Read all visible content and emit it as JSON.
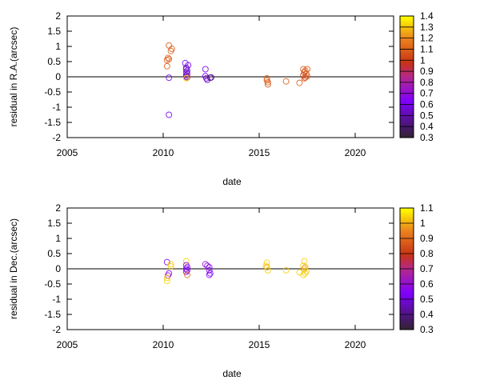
{
  "chart_data": [
    {
      "type": "scatter",
      "xlabel": "date",
      "ylabel": "residual in R.A.(arcsec)",
      "xlim": [
        2005,
        2022
      ],
      "ylim": [
        -2,
        2
      ],
      "xticks": [
        2005,
        2010,
        2015,
        2020
      ],
      "yticks": [
        2,
        1.5,
        1,
        0.5,
        0,
        -0.5,
        -1,
        -1.5,
        -2
      ],
      "ytick_labels": [
        "2",
        "1.5",
        "1",
        "0.5",
        "0",
        "-0.5",
        "-1",
        "-1.5",
        "-2"
      ],
      "zero_line": true,
      "colorbar": {
        "range": [
          0.3,
          1.4
        ],
        "ticks": [
          "1.4",
          "1.3",
          "1.2",
          "1.1",
          "1",
          "0.9",
          "0.8",
          "0.7",
          "0.6",
          "0.5",
          "0.4",
          "0.3"
        ]
      },
      "points": [
        [
          2010.3,
          1.03,
          1.1
        ],
        [
          2010.45,
          0.92,
          1.1
        ],
        [
          2010.4,
          0.85,
          1.1
        ],
        [
          2010.25,
          0.62,
          1.1
        ],
        [
          2010.3,
          0.58,
          1.1
        ],
        [
          2010.2,
          0.55,
          1.1
        ],
        [
          2010.2,
          0.35,
          1.1
        ],
        [
          2010.3,
          -0.03,
          0.6
        ],
        [
          2010.3,
          -1.25,
          0.6
        ],
        [
          2011.15,
          0.45,
          0.6
        ],
        [
          2011.3,
          0.38,
          0.6
        ],
        [
          2011.2,
          0.3,
          0.55
        ],
        [
          2011.2,
          0.25,
          0.55
        ],
        [
          2011.25,
          0.2,
          0.55
        ],
        [
          2011.2,
          0.15,
          0.55
        ],
        [
          2011.25,
          0.1,
          0.55
        ],
        [
          2011.2,
          0.05,
          0.55
        ],
        [
          2011.2,
          0.0,
          0.55
        ],
        [
          2011.25,
          -0.02,
          0.9
        ],
        [
          2011.2,
          -0.05,
          1.35
        ],
        [
          2012.2,
          0.25,
          0.6
        ],
        [
          2012.2,
          0.02,
          0.6
        ],
        [
          2012.25,
          -0.05,
          0.6
        ],
        [
          2012.3,
          -0.1,
          0.55
        ],
        [
          2012.45,
          -0.03,
          0.4
        ],
        [
          2012.5,
          -0.02,
          0.45
        ],
        [
          2015.4,
          -0.05,
          1.1
        ],
        [
          2015.4,
          -0.12,
          1.1
        ],
        [
          2015.45,
          -0.18,
          1.1
        ],
        [
          2015.45,
          -0.25,
          1.1
        ],
        [
          2016.4,
          -0.15,
          1.1
        ],
        [
          2017.1,
          -0.2,
          1.1
        ],
        [
          2017.3,
          0.25,
          1.1
        ],
        [
          2017.4,
          0.2,
          1.1
        ],
        [
          2017.5,
          0.25,
          1.1
        ],
        [
          2017.35,
          0.15,
          1.05
        ],
        [
          2017.45,
          0.1,
          1.1
        ],
        [
          2017.3,
          0.05,
          1.0
        ],
        [
          2017.5,
          0.02,
          1.1
        ],
        [
          2017.4,
          -0.02,
          1.0
        ],
        [
          2017.35,
          -0.05,
          1.1
        ]
      ]
    },
    {
      "type": "scatter",
      "xlabel": "date",
      "ylabel": "residual in Dec.(arcsec)",
      "xlim": [
        2005,
        2022
      ],
      "ylim": [
        -2,
        2
      ],
      "xticks": [
        2005,
        2010,
        2015,
        2020
      ],
      "yticks": [
        2,
        1.5,
        1,
        0.5,
        0,
        -0.5,
        -1,
        -1.5,
        -2
      ],
      "ytick_labels": [
        "2",
        "1.5",
        "1",
        "0.5",
        "0",
        "-0.5",
        "-1",
        "-1.5",
        "-2"
      ],
      "zero_line": true,
      "colorbar": {
        "range": [
          0.3,
          1.1
        ],
        "ticks": [
          "1.1",
          "1",
          "0.9",
          "0.8",
          "0.7",
          "0.6",
          "0.5",
          "0.4",
          "0.3"
        ]
      },
      "points": [
        [
          2010.2,
          0.22,
          0.55
        ],
        [
          2010.4,
          0.15,
          1.05
        ],
        [
          2010.4,
          0.08,
          1.05
        ],
        [
          2010.3,
          -0.15,
          0.55
        ],
        [
          2010.25,
          -0.22,
          0.6
        ],
        [
          2010.2,
          -0.3,
          1.05
        ],
        [
          2010.2,
          -0.4,
          1.05
        ],
        [
          2011.2,
          0.25,
          1.05
        ],
        [
          2011.2,
          0.12,
          0.55
        ],
        [
          2011.25,
          0.05,
          0.55
        ],
        [
          2011.2,
          0.0,
          0.55
        ],
        [
          2011.25,
          -0.05,
          0.55
        ],
        [
          2011.2,
          -0.1,
          0.55
        ],
        [
          2011.25,
          -0.2,
          0.9
        ],
        [
          2012.2,
          0.15,
          0.6
        ],
        [
          2012.3,
          0.1,
          0.6
        ],
        [
          2012.4,
          0.05,
          0.55
        ],
        [
          2012.4,
          -0.05,
          0.55
        ],
        [
          2012.45,
          -0.15,
          0.55
        ],
        [
          2012.4,
          -0.2,
          0.55
        ],
        [
          2015.4,
          0.2,
          1.05
        ],
        [
          2015.35,
          0.1,
          1.05
        ],
        [
          2015.4,
          0.05,
          1.0
        ],
        [
          2015.45,
          -0.05,
          1.05
        ],
        [
          2016.4,
          -0.05,
          1.05
        ],
        [
          2017.1,
          -0.12,
          1.05
        ],
        [
          2017.35,
          0.25,
          1.05
        ],
        [
          2017.3,
          0.1,
          1.05
        ],
        [
          2017.4,
          0.05,
          1.0
        ],
        [
          2017.35,
          0.0,
          1.0
        ],
        [
          2017.45,
          -0.08,
          1.05
        ],
        [
          2017.4,
          -0.15,
          1.05
        ],
        [
          2017.3,
          -0.2,
          1.05
        ]
      ]
    }
  ]
}
